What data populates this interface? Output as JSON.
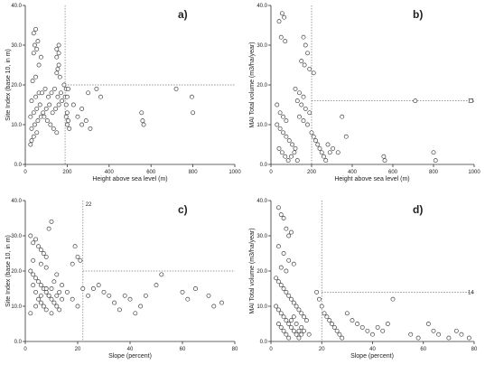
{
  "colors": {
    "axis": "#333333",
    "marker": "#444444",
    "refline": "#777777"
  },
  "chart_data": [
    {
      "type": "scatter",
      "panel": "a)",
      "xlabel": "Height above sea level (m)",
      "ylabel": "Site Index (base 10, in m)",
      "xlim": [
        0,
        1000
      ],
      "ylim": [
        0,
        40
      ],
      "xticks": [
        0,
        200,
        400,
        600,
        800,
        1000
      ],
      "yticks": [
        0.0,
        10.0,
        20.0,
        30.0,
        40.0
      ],
      "ref_x": 190,
      "ref_y": 20,
      "grid": false,
      "points": [
        [
          25,
          5
        ],
        [
          30,
          6
        ],
        [
          40,
          7
        ],
        [
          55,
          8
        ],
        [
          30,
          9
        ],
        [
          45,
          10
        ],
        [
          60,
          11
        ],
        [
          75,
          12
        ],
        [
          90,
          12
        ],
        [
          105,
          11
        ],
        [
          120,
          10
        ],
        [
          135,
          9
        ],
        [
          150,
          8
        ],
        [
          25,
          12
        ],
        [
          40,
          13
        ],
        [
          55,
          14
        ],
        [
          70,
          15
        ],
        [
          85,
          13
        ],
        [
          100,
          14
        ],
        [
          115,
          15
        ],
        [
          130,
          13
        ],
        [
          145,
          14
        ],
        [
          160,
          15
        ],
        [
          175,
          16
        ],
        [
          30,
          16
        ],
        [
          50,
          17
        ],
        [
          65,
          18
        ],
        [
          80,
          18
        ],
        [
          95,
          19
        ],
        [
          110,
          17
        ],
        [
          125,
          18
        ],
        [
          140,
          19
        ],
        [
          155,
          17
        ],
        [
          170,
          18
        ],
        [
          35,
          21
        ],
        [
          50,
          22
        ],
        [
          65,
          25
        ],
        [
          75,
          27
        ],
        [
          40,
          28
        ],
        [
          55,
          29
        ],
        [
          45,
          30
        ],
        [
          60,
          31
        ],
        [
          40,
          33
        ],
        [
          50,
          34
        ],
        [
          150,
          23
        ],
        [
          155,
          24
        ],
        [
          160,
          25
        ],
        [
          150,
          27
        ],
        [
          160,
          28
        ],
        [
          150,
          29
        ],
        [
          160,
          30
        ],
        [
          165,
          22
        ],
        [
          185,
          20
        ],
        [
          190,
          17
        ],
        [
          195,
          15
        ],
        [
          200,
          13
        ],
        [
          205,
          11
        ],
        [
          210,
          9
        ],
        [
          195,
          19
        ],
        [
          200,
          17
        ],
        [
          205,
          19
        ],
        [
          195,
          12
        ],
        [
          200,
          10
        ],
        [
          230,
          15
        ],
        [
          250,
          12
        ],
        [
          270,
          10
        ],
        [
          290,
          11
        ],
        [
          310,
          9
        ],
        [
          270,
          14
        ],
        [
          300,
          18
        ],
        [
          340,
          19
        ],
        [
          360,
          17
        ],
        [
          555,
          13
        ],
        [
          560,
          11
        ],
        [
          565,
          10
        ],
        [
          720,
          19
        ],
        [
          795,
          17
        ],
        [
          800,
          13
        ]
      ]
    },
    {
      "type": "scatter",
      "panel": "b)",
      "xlabel": "Height above sea level (m)",
      "ylabel": "MAI Total volume (m3/ha/year)",
      "xlim": [
        0,
        1000
      ],
      "ylim": [
        0,
        40
      ],
      "xticks": [
        0,
        200,
        400,
        600,
        800,
        1000
      ],
      "yticks": [
        0.0,
        10.0,
        20.0,
        30.0,
        40.0
      ],
      "ref_x": 200,
      "ref_y": 16,
      "ref_y_label": "16",
      "grid": false,
      "points": [
        [
          40,
          36
        ],
        [
          55,
          38
        ],
        [
          65,
          37
        ],
        [
          50,
          32
        ],
        [
          70,
          31
        ],
        [
          160,
          32
        ],
        [
          170,
          30
        ],
        [
          180,
          28
        ],
        [
          150,
          26
        ],
        [
          165,
          25
        ],
        [
          190,
          24
        ],
        [
          210,
          23
        ],
        [
          120,
          19
        ],
        [
          140,
          18
        ],
        [
          160,
          17
        ],
        [
          130,
          16
        ],
        [
          150,
          15
        ],
        [
          170,
          14
        ],
        [
          190,
          13
        ],
        [
          140,
          12
        ],
        [
          160,
          11
        ],
        [
          180,
          10
        ],
        [
          30,
          15
        ],
        [
          45,
          13
        ],
        [
          60,
          12
        ],
        [
          75,
          11
        ],
        [
          30,
          10
        ],
        [
          45,
          9
        ],
        [
          60,
          8
        ],
        [
          75,
          7
        ],
        [
          90,
          6
        ],
        [
          105,
          5
        ],
        [
          120,
          4
        ],
        [
          40,
          4
        ],
        [
          55,
          3
        ],
        [
          70,
          2
        ],
        [
          85,
          1
        ],
        [
          100,
          2
        ],
        [
          115,
          3
        ],
        [
          130,
          1
        ],
        [
          200,
          8
        ],
        [
          210,
          7
        ],
        [
          220,
          6
        ],
        [
          230,
          5
        ],
        [
          240,
          4
        ],
        [
          250,
          3
        ],
        [
          260,
          2
        ],
        [
          270,
          1
        ],
        [
          280,
          5
        ],
        [
          290,
          3
        ],
        [
          305,
          4
        ],
        [
          330,
          3
        ],
        [
          350,
          12
        ],
        [
          370,
          7
        ],
        [
          555,
          2
        ],
        [
          560,
          1
        ],
        [
          710,
          16
        ],
        [
          800,
          3
        ],
        [
          810,
          1
        ],
        [
          985,
          16
        ]
      ]
    },
    {
      "type": "scatter",
      "panel": "c)",
      "xlabel": "Slope (percent)",
      "ylabel": "Site Index (base 10, in m)",
      "xlim": [
        0,
        80
      ],
      "ylim": [
        0,
        40
      ],
      "xticks": [
        0,
        20,
        40,
        60,
        80
      ],
      "yticks": [
        0.0,
        10.0,
        20.0,
        30.0,
        40.0
      ],
      "ref_x": 22,
      "ref_x_label": "22",
      "ref_y": 20,
      "grid": false,
      "points": [
        [
          2,
          30
        ],
        [
          3,
          28
        ],
        [
          4,
          29
        ],
        [
          5,
          27
        ],
        [
          6,
          26
        ],
        [
          7,
          25
        ],
        [
          8,
          24
        ],
        [
          9,
          32
        ],
        [
          10,
          34
        ],
        [
          3,
          23
        ],
        [
          6,
          22
        ],
        [
          8,
          21
        ],
        [
          2,
          20
        ],
        [
          3,
          19
        ],
        [
          4,
          18
        ],
        [
          5,
          17
        ],
        [
          6,
          16
        ],
        [
          7,
          15
        ],
        [
          8,
          14
        ],
        [
          9,
          13
        ],
        [
          10,
          12
        ],
        [
          11,
          11
        ],
        [
          12,
          10
        ],
        [
          13,
          9
        ],
        [
          3,
          16
        ],
        [
          4,
          14
        ],
        [
          5,
          12
        ],
        [
          6,
          11
        ],
        [
          7,
          10
        ],
        [
          8,
          9
        ],
        [
          9,
          13
        ],
        [
          10,
          15
        ],
        [
          11,
          17
        ],
        [
          12,
          19
        ],
        [
          13,
          14
        ],
        [
          14,
          12
        ],
        [
          2,
          8
        ],
        [
          4,
          10
        ],
        [
          6,
          13
        ],
        [
          8,
          15
        ],
        [
          10,
          8
        ],
        [
          12,
          13
        ],
        [
          14,
          16
        ],
        [
          16,
          14
        ],
        [
          18,
          12
        ],
        [
          20,
          10
        ],
        [
          18,
          22
        ],
        [
          19,
          27
        ],
        [
          20,
          24
        ],
        [
          21,
          23
        ],
        [
          22,
          15
        ],
        [
          24,
          13
        ],
        [
          26,
          15
        ],
        [
          28,
          16
        ],
        [
          30,
          14
        ],
        [
          32,
          13
        ],
        [
          34,
          11
        ],
        [
          36,
          9
        ],
        [
          38,
          13
        ],
        [
          40,
          12
        ],
        [
          42,
          8
        ],
        [
          44,
          10
        ],
        [
          46,
          13
        ],
        [
          50,
          16
        ],
        [
          52,
          19
        ],
        [
          60,
          14
        ],
        [
          62,
          12
        ],
        [
          65,
          15
        ],
        [
          70,
          13
        ],
        [
          72,
          10
        ],
        [
          75,
          11
        ]
      ]
    },
    {
      "type": "scatter",
      "panel": "d)",
      "xlabel": "Slope (percent)",
      "ylabel": "MAI Total volume (m3/ha/year)",
      "xlim": [
        0,
        80
      ],
      "ylim": [
        0,
        40
      ],
      "xticks": [
        0,
        20,
        40,
        60,
        80
      ],
      "yticks": [
        0.0,
        10.0,
        20.0,
        30.0,
        40.0
      ],
      "ref_x": 20,
      "ref_y": 14,
      "ref_y_label": "14",
      "grid": false,
      "points": [
        [
          3,
          38
        ],
        [
          4,
          36
        ],
        [
          5,
          35
        ],
        [
          6,
          32
        ],
        [
          7,
          30
        ],
        [
          8,
          31
        ],
        [
          3,
          27
        ],
        [
          5,
          25
        ],
        [
          7,
          23
        ],
        [
          9,
          22
        ],
        [
          4,
          21
        ],
        [
          6,
          20
        ],
        [
          2,
          18
        ],
        [
          3,
          17
        ],
        [
          4,
          16
        ],
        [
          5,
          15
        ],
        [
          6,
          14
        ],
        [
          7,
          13
        ],
        [
          8,
          12
        ],
        [
          9,
          11
        ],
        [
          10,
          10
        ],
        [
          11,
          9
        ],
        [
          12,
          8
        ],
        [
          13,
          7
        ],
        [
          2,
          10
        ],
        [
          3,
          9
        ],
        [
          4,
          8
        ],
        [
          5,
          7
        ],
        [
          6,
          6
        ],
        [
          7,
          5
        ],
        [
          8,
          4
        ],
        [
          9,
          3
        ],
        [
          10,
          2
        ],
        [
          11,
          1
        ],
        [
          12,
          4
        ],
        [
          13,
          3
        ],
        [
          14,
          6
        ],
        [
          15,
          2
        ],
        [
          3,
          5
        ],
        [
          4,
          4
        ],
        [
          5,
          3
        ],
        [
          6,
          2
        ],
        [
          7,
          1
        ],
        [
          8,
          6
        ],
        [
          9,
          7
        ],
        [
          10,
          5
        ],
        [
          11,
          3
        ],
        [
          12,
          2
        ],
        [
          18,
          14
        ],
        [
          19,
          12
        ],
        [
          20,
          10
        ],
        [
          21,
          8
        ],
        [
          22,
          7
        ],
        [
          23,
          6
        ],
        [
          24,
          5
        ],
        [
          25,
          4
        ],
        [
          26,
          3
        ],
        [
          27,
          2
        ],
        [
          28,
          1
        ],
        [
          30,
          8
        ],
        [
          32,
          6
        ],
        [
          34,
          5
        ],
        [
          36,
          4
        ],
        [
          38,
          3
        ],
        [
          40,
          2
        ],
        [
          42,
          4
        ],
        [
          44,
          3
        ],
        [
          46,
          5
        ],
        [
          48,
          12
        ],
        [
          55,
          2
        ],
        [
          58,
          1
        ],
        [
          62,
          5
        ],
        [
          64,
          3
        ],
        [
          66,
          2
        ],
        [
          70,
          1
        ],
        [
          73,
          3
        ],
        [
          75,
          2
        ],
        [
          78,
          1
        ]
      ]
    }
  ]
}
